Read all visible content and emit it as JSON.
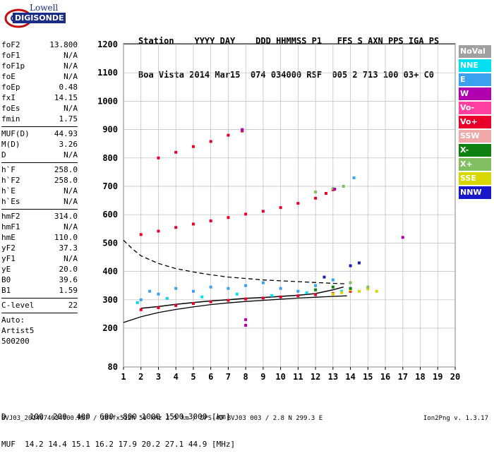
{
  "logo": {
    "line1": "Lowell",
    "line2": "DIGISONDE"
  },
  "header": {
    "labels": "Station    YYYY DAY    DDD HHMMSS P1   FFS S AXN PPS IGA PS",
    "values": "Boa Vista 2014 Mar15  074 034000 RSF  005 2 713 100 03+ C0"
  },
  "params_group1": [
    {
      "k": "foF2",
      "v": "13.800"
    },
    {
      "k": "foF1",
      "v": "N/A"
    },
    {
      "k": "foF1p",
      "v": "N/A"
    },
    {
      "k": "foE",
      "v": "N/A"
    },
    {
      "k": "foEp",
      "v": "0.48"
    },
    {
      "k": "fxI",
      "v": "14.15"
    },
    {
      "k": "foEs",
      "v": "N/A"
    },
    {
      "k": "fmin",
      "v": "1.75"
    }
  ],
  "params_group2": [
    {
      "k": "MUF(D)",
      "v": "44.93"
    },
    {
      "k": "M(D)",
      "v": "3.26"
    },
    {
      "k": "D",
      "v": "N/A"
    }
  ],
  "params_group3": [
    {
      "k": "h`F",
      "v": "258.0"
    },
    {
      "k": "h`F2",
      "v": "258.0"
    },
    {
      "k": "h`E",
      "v": "N/A"
    },
    {
      "k": "h`Es",
      "v": "N/A"
    }
  ],
  "params_group4": [
    {
      "k": "hmF2",
      "v": "314.0"
    },
    {
      "k": "hmF1",
      "v": "N/A"
    },
    {
      "k": "hmE",
      "v": "110.0"
    },
    {
      "k": "yF2",
      "v": "37.3"
    },
    {
      "k": "yF1",
      "v": "N/A"
    },
    {
      "k": "yE",
      "v": "20.0"
    },
    {
      "k": "B0",
      "v": "39.6"
    },
    {
      "k": "B1",
      "v": "1.59"
    }
  ],
  "params_group5": [
    {
      "k": "C-level",
      "v": "22"
    }
  ],
  "auto": {
    "line1": "Auto:",
    "line2": "Artist5",
    "line3": "500200"
  },
  "legend": [
    {
      "label": "NoVal",
      "color": "#a0a0a0"
    },
    {
      "label": "NNE",
      "color": "#00e0f0"
    },
    {
      "label": "E",
      "color": "#3aa0f0"
    },
    {
      "label": "W",
      "color": "#b000b0"
    },
    {
      "label": "Vo-",
      "color": "#ff40a0"
    },
    {
      "label": "Vo+",
      "color": "#e8002a"
    },
    {
      "label": "SSW",
      "color": "#f0a8a8"
    },
    {
      "label": "X-",
      "color": "#108010"
    },
    {
      "label": "X+",
      "color": "#80c060"
    },
    {
      "label": "SSE",
      "color": "#d8d800"
    },
    {
      "label": "NNW",
      "color": "#1818c8"
    }
  ],
  "footer": {
    "line1": "D     100  200  400  600  800 1000 1500 3000 [km]",
    "line2": "MUF  14.2 14.4 15.1 16.2 17.9 20.2 27.1 44.9 [MHz]",
    "line3": "BVJ03_2014074034000.RSF / 384fx512h 50 kHz 2.5 km / DPS-4D BVJ03 003 / 2.8 N 299.3 E",
    "version": "Ion2Png v. 1.3.17"
  },
  "chart_data": {
    "type": "scatter",
    "xlim": [
      1,
      20
    ],
    "ylim": [
      80,
      1200
    ],
    "xticks": [
      1,
      2,
      3,
      4,
      5,
      6,
      7,
      8,
      9,
      10,
      11,
      12,
      13,
      14,
      15,
      16,
      17,
      18,
      19,
      20
    ],
    "yticks": [
      80,
      200,
      300,
      400,
      500,
      600,
      700,
      800,
      900,
      1000,
      1100,
      1200
    ],
    "grid": true,
    "series": [
      {
        "name": "Vo+",
        "color": "#e8002a",
        "points": [
          [
            2.0,
            265
          ],
          [
            3.0,
            272
          ],
          [
            4.0,
            280
          ],
          [
            5.0,
            287
          ],
          [
            6.0,
            293
          ],
          [
            7.0,
            298
          ],
          [
            8.0,
            303
          ],
          [
            9.0,
            306
          ],
          [
            10.0,
            310
          ],
          [
            11.0,
            314
          ],
          [
            12.0,
            318
          ],
          [
            13.0,
            322
          ],
          [
            14.0,
            330
          ],
          [
            2.0,
            530
          ],
          [
            3.0,
            542
          ],
          [
            4.0,
            555
          ],
          [
            5.0,
            567
          ],
          [
            6.0,
            578
          ],
          [
            7.0,
            590
          ],
          [
            8.0,
            602
          ],
          [
            9.0,
            612
          ],
          [
            10.0,
            625
          ],
          [
            11.0,
            640
          ],
          [
            12.0,
            658
          ],
          [
            12.6,
            675
          ],
          [
            13.0,
            688
          ],
          [
            3.0,
            800
          ],
          [
            4.0,
            820
          ],
          [
            5.0,
            840
          ],
          [
            6.0,
            858
          ],
          [
            7.0,
            880
          ],
          [
            7.8,
            895
          ]
        ]
      },
      {
        "name": "E",
        "color": "#3aa0f0",
        "points": [
          [
            2.0,
            300
          ],
          [
            2.5,
            330
          ],
          [
            3.0,
            320
          ],
          [
            4.0,
            340
          ],
          [
            5.0,
            330
          ],
          [
            6.0,
            345
          ],
          [
            7.0,
            340
          ],
          [
            8.0,
            350
          ],
          [
            9.0,
            360
          ],
          [
            10.0,
            340
          ],
          [
            11.0,
            330
          ],
          [
            12.0,
            350
          ],
          [
            13.0,
            370
          ],
          [
            14.0,
            340
          ],
          [
            14.2,
            730
          ]
        ]
      },
      {
        "name": "NNE",
        "color": "#00e0f0",
        "points": [
          [
            1.8,
            290
          ],
          [
            3.5,
            305
          ],
          [
            5.5,
            310
          ],
          [
            7.5,
            320
          ],
          [
            9.5,
            315
          ],
          [
            11.5,
            325
          ],
          [
            13.5,
            330
          ]
        ]
      },
      {
        "name": "SSE",
        "color": "#d8d800",
        "points": [
          [
            13.0,
            320
          ],
          [
            13.5,
            325
          ],
          [
            14.0,
            335
          ],
          [
            14.5,
            330
          ],
          [
            15.0,
            338
          ],
          [
            15.5,
            330
          ]
        ]
      },
      {
        "name": "X+",
        "color": "#80c060",
        "points": [
          [
            12.0,
            680
          ],
          [
            13.0,
            692
          ],
          [
            13.6,
            700
          ],
          [
            14.0,
            360
          ],
          [
            15.0,
            345
          ]
        ]
      },
      {
        "name": "W",
        "color": "#b000b0",
        "points": [
          [
            13.1,
            690
          ],
          [
            8.0,
            210
          ],
          [
            8.0,
            230
          ],
          [
            7.8,
            900
          ],
          [
            17.0,
            520
          ]
        ]
      },
      {
        "name": "NNW",
        "color": "#1818c8",
        "points": [
          [
            14.0,
            420
          ],
          [
            14.5,
            430
          ],
          [
            12.5,
            380
          ]
        ]
      },
      {
        "name": "X-",
        "color": "#108010",
        "points": [
          [
            12.0,
            335
          ],
          [
            13.0,
            345
          ],
          [
            14.0,
            340
          ]
        ]
      }
    ],
    "curves": [
      {
        "style": "solid",
        "color": "#000000",
        "points": [
          [
            1,
            220
          ],
          [
            2,
            240
          ],
          [
            3,
            255
          ],
          [
            4,
            266
          ],
          [
            5,
            275
          ],
          [
            6,
            283
          ],
          [
            7,
            289
          ],
          [
            8,
            294
          ],
          [
            9,
            298
          ],
          [
            10,
            302
          ],
          [
            11,
            306
          ],
          [
            12,
            309
          ],
          [
            13,
            312
          ],
          [
            13.8,
            314
          ]
        ]
      },
      {
        "style": "dashed",
        "color": "#000000",
        "points": [
          [
            1,
            510
          ],
          [
            1.5,
            480
          ],
          [
            2,
            455
          ],
          [
            3,
            428
          ],
          [
            4,
            410
          ],
          [
            5,
            398
          ],
          [
            6,
            388
          ],
          [
            7,
            380
          ],
          [
            8,
            375
          ],
          [
            9,
            370
          ],
          [
            10,
            367
          ],
          [
            11,
            364
          ],
          [
            12,
            361
          ],
          [
            13,
            358
          ],
          [
            13.8,
            356
          ]
        ]
      },
      {
        "style": "trace",
        "color": "#000000",
        "points": [
          [
            2.0,
            270
          ],
          [
            3.0,
            276
          ],
          [
            4.0,
            284
          ],
          [
            5.0,
            290
          ],
          [
            6.0,
            296
          ],
          [
            7.0,
            300
          ],
          [
            8.0,
            305
          ],
          [
            9.0,
            308
          ],
          [
            10.0,
            312
          ],
          [
            11.0,
            316
          ],
          [
            12.0,
            322
          ],
          [
            13.0,
            335
          ],
          [
            13.6,
            345
          ]
        ]
      }
    ]
  }
}
